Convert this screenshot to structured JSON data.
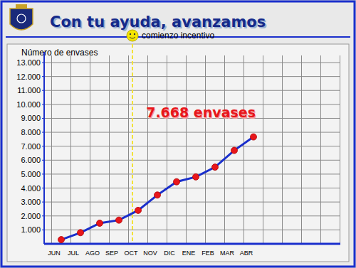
{
  "chart_data": {
    "type": "line",
    "title": "Con tu ayuda, avanzamos",
    "y_label": "Número de envases",
    "categories": [
      "JUN",
      "JUL",
      "AGO",
      "SEP",
      "OCT",
      "NOV",
      "DIC",
      "ENE",
      "FEB",
      "MAR",
      "ABR"
    ],
    "values": [
      300,
      800,
      1480,
      1700,
      2400,
      3500,
      4450,
      4800,
      5500,
      6700,
      7668
    ],
    "color": "#1a2fcc",
    "marker": "circle",
    "grid": true,
    "ylim": [
      0,
      13000
    ],
    "yticks": [
      {
        "value": 1000,
        "label": "1.000"
      },
      {
        "value": 2000,
        "label": "2.000"
      },
      {
        "value": 3000,
        "label": "3.000"
      },
      {
        "value": 4000,
        "label": "4.000"
      },
      {
        "value": 5000,
        "label": "5.000"
      },
      {
        "value": 6000,
        "label": "6.000"
      },
      {
        "value": 7000,
        "label": "7.000"
      },
      {
        "value": 8000,
        "label": "8.000"
      },
      {
        "value": 9000,
        "label": "9.000"
      },
      {
        "value": 10000,
        "label": "10.000"
      },
      {
        "value": 11000,
        "label": "11.000"
      },
      {
        "value": 12000,
        "label": "12.000"
      },
      {
        "value": 13000,
        "label": "13.000"
      }
    ],
    "annotations": [
      {
        "text": "comienzo incentivo",
        "x": "OCT"
      },
      {
        "text": "7.668 envases",
        "x": "ABR"
      }
    ]
  }
}
